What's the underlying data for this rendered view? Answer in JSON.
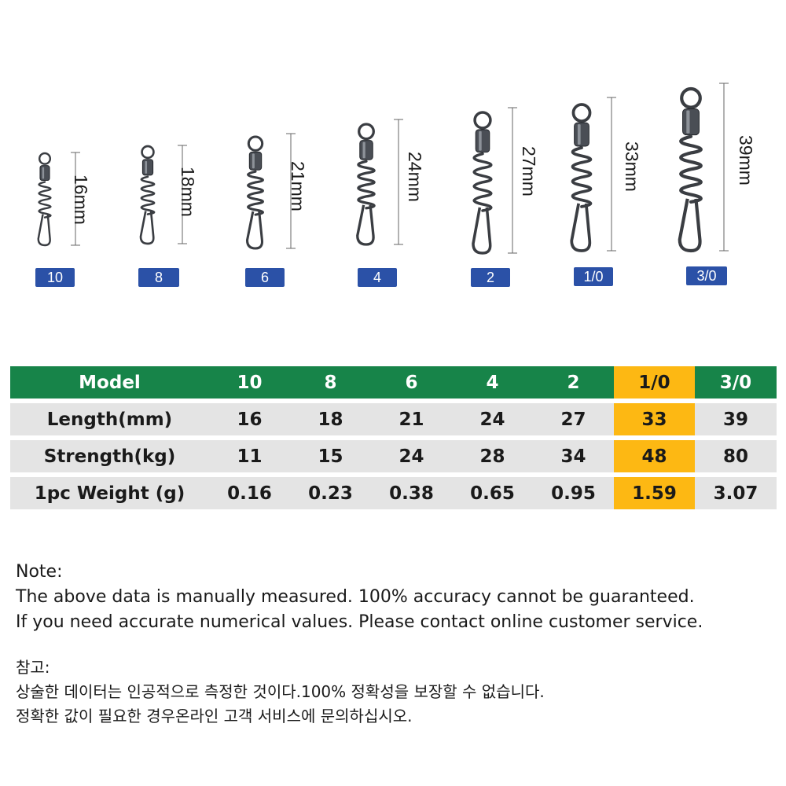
{
  "products": [
    {
      "size": "10",
      "length_label": "16mm"
    },
    {
      "size": "8",
      "length_label": "18mm"
    },
    {
      "size": "6",
      "length_label": "21mm"
    },
    {
      "size": "4",
      "length_label": "24mm"
    },
    {
      "size": "2",
      "length_label": "27mm"
    },
    {
      "size": "1/0",
      "length_label": "33mm"
    },
    {
      "size": "3/0",
      "length_label": "39mm"
    }
  ],
  "table": {
    "header": {
      "label": "Model",
      "values": [
        "10",
        "8",
        "6",
        "4",
        "2",
        "1/0",
        "3/0"
      ]
    },
    "rows": [
      {
        "label": "Length(mm)",
        "values": [
          "16",
          "18",
          "21",
          "24",
          "27",
          "33",
          "39"
        ]
      },
      {
        "label": "Strength(kg)",
        "values": [
          "11",
          "15",
          "24",
          "28",
          "34",
          "48",
          "80"
        ]
      },
      {
        "label": "1pc Weight (g)",
        "values": [
          "0.16",
          "0.23",
          "0.38",
          "0.65",
          "0.95",
          "1.59",
          "3.07"
        ]
      }
    ],
    "highlight_model": "1/0"
  },
  "note": {
    "title": "Note:",
    "lines": [
      "The above data is manually measured. 100% accuracy cannot be guaranteed.",
      "If you need accurate numerical values. Please contact online customer service."
    ]
  },
  "note_ko": {
    "title": "참고:",
    "lines": [
      "상술한 데이터는 인공적으로 측정한 것이다.100% 정확성을 보장할 수 없습니다.",
      "정확한 값이 필요한 경우온라인 고객 서비스에 문의하십시오."
    ]
  },
  "colors": {
    "header_green": "#178449",
    "highlight_yellow": "#fdb813",
    "row_gray": "#e4e4e4",
    "badge_blue": "#2b51a7",
    "metal": "#3a3d42"
  }
}
